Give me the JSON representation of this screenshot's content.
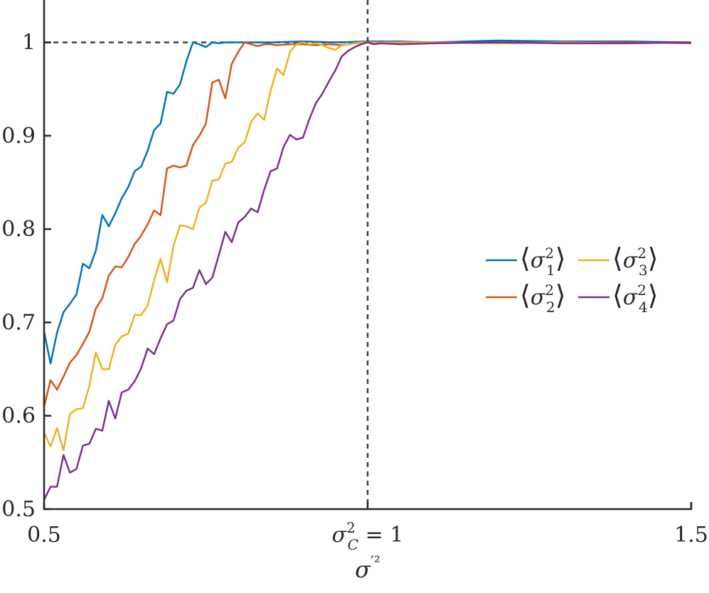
{
  "chart_data": {
    "type": "line",
    "xlim": [
      0.5,
      1.5
    ],
    "ylim": [
      0.5,
      1.05
    ],
    "x_ticks": [
      {
        "value": 0.5,
        "label": "0.5"
      },
      {
        "value": 1.0,
        "label": "σ²C = 1"
      },
      {
        "value": 1.5,
        "label": "1.5"
      }
    ],
    "y_ticks": [
      {
        "value": 0.5,
        "label": "0.5"
      },
      {
        "value": 0.6,
        "label": "0.6"
      },
      {
        "value": 0.7,
        "label": "0.7"
      },
      {
        "value": 0.8,
        "label": "0.8"
      },
      {
        "value": 0.9,
        "label": "0.9"
      },
      {
        "value": 1.0,
        "label": "1"
      }
    ],
    "xlabel": "σ′²",
    "reference_lines": {
      "y": 1.0,
      "x": 1.0
    },
    "grid": false,
    "legend": {
      "placement": "right",
      "columns": 2
    },
    "series": [
      {
        "name": "⟨σ²1⟩",
        "color": "#0072BD",
        "x": [
          0.5,
          0.51,
          0.52,
          0.53,
          0.54,
          0.55,
          0.56,
          0.57,
          0.58,
          0.59,
          0.6,
          0.61,
          0.62,
          0.63,
          0.64,
          0.65,
          0.66,
          0.67,
          0.68,
          0.69,
          0.7,
          0.71,
          0.72,
          0.73,
          0.74,
          0.75,
          0.76,
          0.77,
          0.78,
          0.8,
          0.83,
          0.85,
          0.9,
          0.95,
          1.0,
          1.05,
          1.1,
          1.2,
          1.3,
          1.4,
          1.5
        ],
        "y": [
          0.69,
          0.656,
          0.689,
          0.711,
          0.72,
          0.73,
          0.763,
          0.758,
          0.777,
          0.815,
          0.803,
          0.817,
          0.833,
          0.845,
          0.862,
          0.867,
          0.884,
          0.906,
          0.913,
          0.947,
          0.945,
          0.955,
          0.98,
          1.0,
          0.998,
          0.995,
          1.0,
          0.999,
          1.0,
          1.0,
          1.0,
          1.0,
          1.001,
          1.0,
          1.001,
          1.001,
          1.0,
          1.002,
          1.001,
          1.001,
          1.0
        ]
      },
      {
        "name": "⟨σ²2⟩",
        "color": "#D95319",
        "x": [
          0.5,
          0.51,
          0.52,
          0.53,
          0.54,
          0.55,
          0.56,
          0.57,
          0.58,
          0.59,
          0.6,
          0.61,
          0.62,
          0.63,
          0.64,
          0.65,
          0.66,
          0.67,
          0.68,
          0.69,
          0.7,
          0.71,
          0.72,
          0.73,
          0.74,
          0.75,
          0.76,
          0.77,
          0.78,
          0.79,
          0.8,
          0.81,
          0.82,
          0.83,
          0.84,
          0.85,
          0.86,
          0.88,
          0.9,
          0.92,
          0.94,
          0.96,
          0.98,
          1.0,
          1.1,
          1.2,
          1.3,
          1.4,
          1.5
        ],
        "y": [
          0.61,
          0.638,
          0.628,
          0.642,
          0.657,
          0.665,
          0.677,
          0.69,
          0.715,
          0.726,
          0.75,
          0.76,
          0.759,
          0.77,
          0.784,
          0.793,
          0.805,
          0.82,
          0.815,
          0.865,
          0.868,
          0.866,
          0.868,
          0.89,
          0.9,
          0.913,
          0.957,
          0.96,
          0.94,
          0.977,
          0.99,
          1.0,
          0.998,
          0.996,
          0.998,
          0.998,
          0.997,
          0.998,
          0.998,
          0.997,
          0.998,
          0.997,
          0.999,
          1.0,
          1.0,
          0.999,
          1.0,
          1.0,
          0.999
        ]
      },
      {
        "name": "⟨σ²3⟩",
        "color": "#EDB120",
        "x": [
          0.5,
          0.51,
          0.52,
          0.53,
          0.54,
          0.55,
          0.56,
          0.57,
          0.58,
          0.59,
          0.6,
          0.61,
          0.62,
          0.63,
          0.64,
          0.65,
          0.66,
          0.67,
          0.68,
          0.69,
          0.7,
          0.71,
          0.72,
          0.73,
          0.74,
          0.75,
          0.76,
          0.77,
          0.78,
          0.79,
          0.8,
          0.81,
          0.82,
          0.83,
          0.84,
          0.85,
          0.86,
          0.87,
          0.88,
          0.89,
          0.9,
          0.91,
          0.92,
          0.93,
          0.94,
          0.95,
          0.96,
          0.97,
          0.98,
          0.99,
          1.0,
          1.1,
          1.2,
          1.3,
          1.4,
          1.5
        ],
        "y": [
          0.582,
          0.567,
          0.587,
          0.563,
          0.602,
          0.607,
          0.608,
          0.632,
          0.668,
          0.65,
          0.65,
          0.676,
          0.685,
          0.688,
          0.708,
          0.708,
          0.718,
          0.745,
          0.768,
          0.743,
          0.782,
          0.804,
          0.803,
          0.8,
          0.823,
          0.828,
          0.852,
          0.853,
          0.87,
          0.872,
          0.887,
          0.893,
          0.915,
          0.924,
          0.917,
          0.948,
          0.972,
          0.965,
          0.99,
          0.998,
          1.0,
          0.998,
          0.999,
          0.997,
          0.994,
          0.992,
          0.997,
          0.998,
          0.999,
          1.0,
          1.0,
          1.0,
          0.999,
          1.0,
          0.999,
          1.0
        ]
      },
      {
        "name": "⟨σ²4⟩",
        "color": "#7E2F8E",
        "x": [
          0.5,
          0.51,
          0.52,
          0.53,
          0.54,
          0.55,
          0.56,
          0.57,
          0.58,
          0.59,
          0.6,
          0.61,
          0.62,
          0.63,
          0.64,
          0.65,
          0.66,
          0.67,
          0.68,
          0.69,
          0.7,
          0.71,
          0.72,
          0.73,
          0.74,
          0.75,
          0.76,
          0.77,
          0.78,
          0.79,
          0.8,
          0.81,
          0.82,
          0.83,
          0.84,
          0.85,
          0.86,
          0.87,
          0.88,
          0.89,
          0.9,
          0.91,
          0.92,
          0.93,
          0.94,
          0.95,
          0.96,
          0.97,
          0.98,
          0.99,
          1.0,
          1.01,
          1.02,
          1.05,
          1.1,
          1.2,
          1.3,
          1.4,
          1.5
        ],
        "y": [
          0.51,
          0.524,
          0.524,
          0.558,
          0.539,
          0.543,
          0.568,
          0.57,
          0.586,
          0.584,
          0.616,
          0.597,
          0.625,
          0.628,
          0.637,
          0.651,
          0.672,
          0.666,
          0.683,
          0.698,
          0.702,
          0.725,
          0.734,
          0.737,
          0.756,
          0.741,
          0.748,
          0.772,
          0.797,
          0.786,
          0.807,
          0.813,
          0.822,
          0.818,
          0.842,
          0.862,
          0.865,
          0.888,
          0.901,
          0.896,
          0.898,
          0.918,
          0.935,
          0.945,
          0.958,
          0.97,
          0.985,
          0.991,
          0.995,
          0.998,
          1.0,
          0.998,
          0.999,
          0.998,
          0.999,
          1.0,
          0.999,
          0.999,
          1.0
        ]
      }
    ]
  }
}
